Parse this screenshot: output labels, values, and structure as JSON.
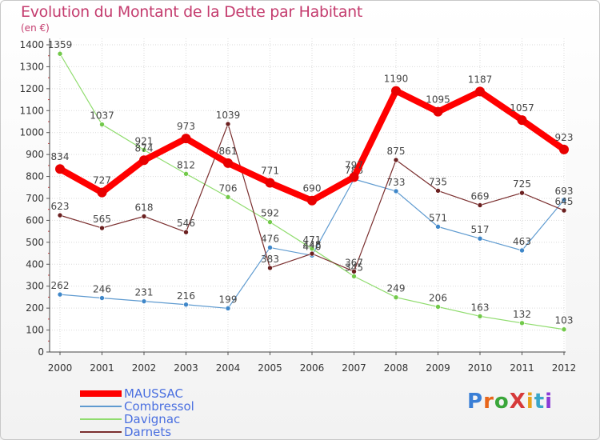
{
  "title": "Evolution du Montant de la Dette par Habitant",
  "subtitle": "(en €)",
  "logo": "ProXiti",
  "chart_data": {
    "type": "line",
    "title": "Evolution du Montant de la Dette par Habitant",
    "ylabel": "(en €)",
    "xlabel": "",
    "ylim": [
      0,
      1400
    ],
    "yticks": [
      0,
      100,
      200,
      300,
      400,
      500,
      600,
      700,
      800,
      900,
      1000,
      1100,
      1200,
      1300,
      1400
    ],
    "grid": true,
    "legend": "bottom-left",
    "categories": [
      "2000",
      "2001",
      "2002",
      "2003",
      "2004",
      "2005",
      "2006",
      "2007",
      "2008",
      "2009",
      "2010",
      "2011",
      "2012"
    ],
    "series": [
      {
        "name": "Combressol",
        "color": "#5f9bd0",
        "marker": "#3f87c9",
        "width": 1.2,
        "values": [
          262,
          246,
          231,
          216,
          199,
          476,
          440,
          788,
          733,
          571,
          517,
          463,
          693
        ]
      },
      {
        "name": "Davignac",
        "color": "#90dc6e",
        "marker": "#72c94a",
        "width": 1.2,
        "values": [
          1359,
          1037,
          921,
          812,
          706,
          592,
          471,
          345,
          249,
          206,
          163,
          132,
          103
        ]
      },
      {
        "name": "Darnets",
        "color": "#7a2e2e",
        "marker": "#6b2020",
        "width": 1.2,
        "values": [
          623,
          565,
          618,
          546,
          1039,
          383,
          448,
          367,
          875,
          735,
          669,
          725,
          645
        ]
      },
      {
        "name": "MAUSSAC",
        "color": "#ff0000",
        "marker": "#e80000",
        "width": 8,
        "values": [
          834,
          727,
          874,
          973,
          861,
          771,
          690,
          797,
          1190,
          1095,
          1187,
          1057,
          923
        ]
      }
    ],
    "legend_order": [
      "MAUSSAC",
      "Combressol",
      "Davignac",
      "Darnets"
    ]
  }
}
